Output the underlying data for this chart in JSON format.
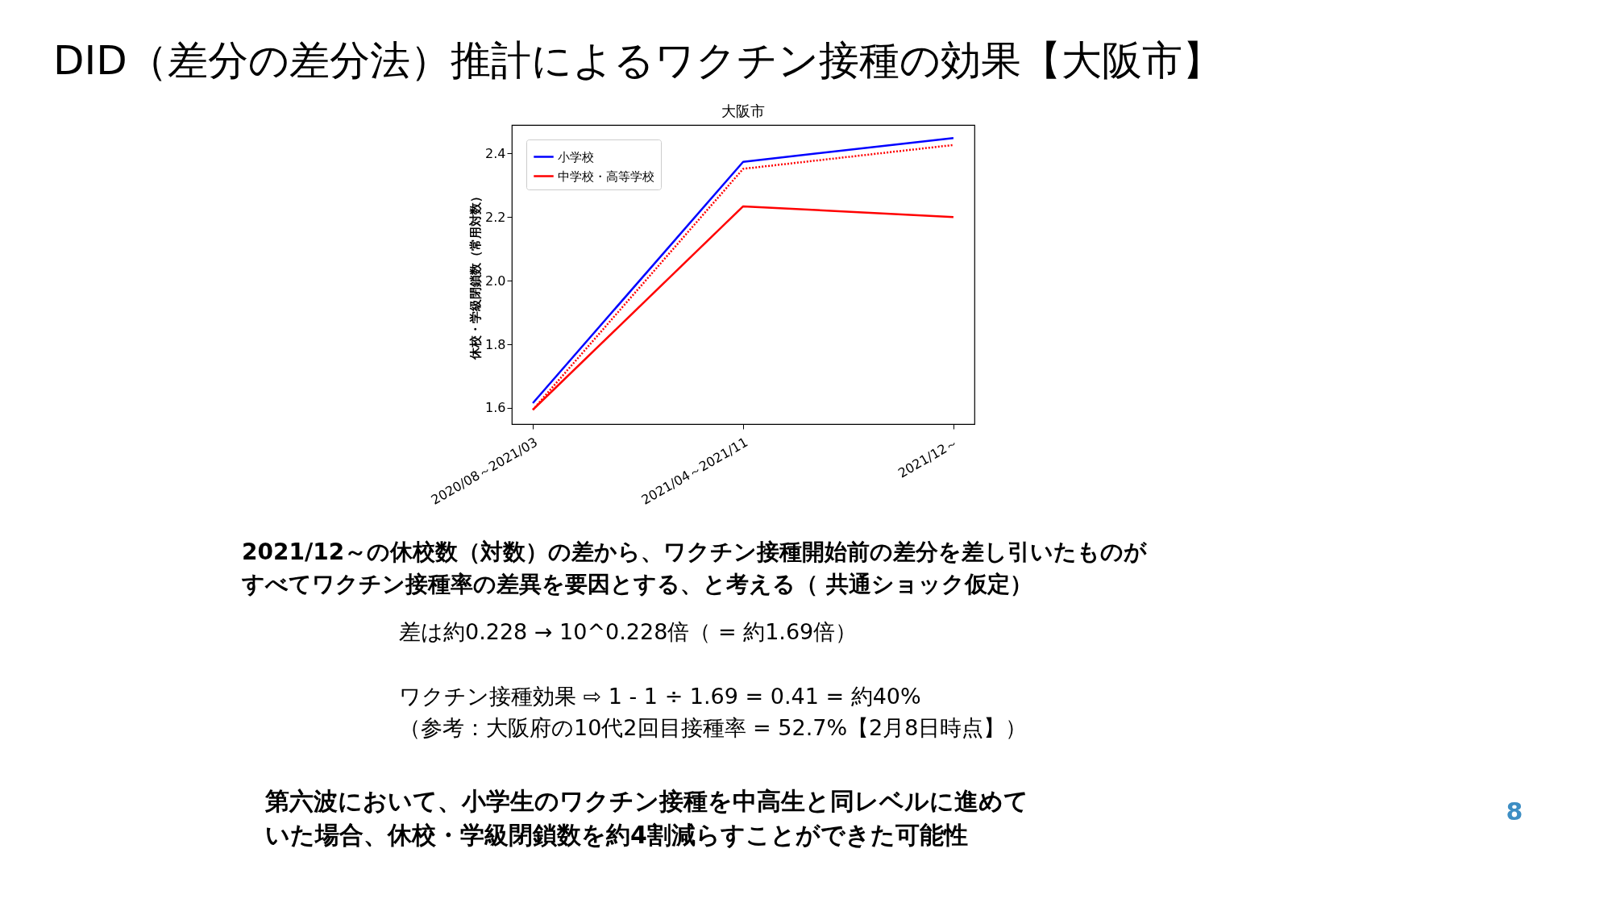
{
  "chart_data": {
    "type": "line",
    "title": "DID（差分の差分法）推計によるワクチン接種の効果【大阪市】",
    "subtitle": "大阪市",
    "ylabel": "休校・学級閉鎖数（常用対数）",
    "categories": [
      "2020/08～2021/03",
      "2021/04～2021/11",
      "2021/12～"
    ],
    "series": [
      {
        "name": "小学校",
        "color": "#0000ff",
        "values": [
          1.615,
          2.374,
          2.449
        ]
      },
      {
        "name": "中学校・高等学校",
        "color": "#ff0000",
        "values": [
          1.594,
          2.234,
          2.2
        ]
      },
      {
        "color": "#ff0000",
        "values": [
          1.594,
          2.352,
          2.427
        ],
        "line_style": "dotted"
      }
    ],
    "ylim": [
      1.549,
      2.49
    ],
    "yticks": [
      1.6,
      1.8,
      {
        "value": 2,
        "label": "2.0"
      },
      2.2,
      2.4
    ],
    "grid": false,
    "legend": "top left",
    "line_style": "solid",
    "marker": "none",
    "annotations": [
      "2021/12～の休校数（対数）の差から、ワクチン接種開始前の差分を差し引いたものが",
      "すべてワクチン接種率の差異を要因とする、と考える（ 共通ショック仮定）",
      "差は約0.228 → 10^0.228倍（ = 約1.69倍）",
      "ワクチン接種効果 ⇨ 1 - 1 ÷ 1.69 =  0.41 = 約40%",
      "（参考：大阪府の10代2回目接種率 = 52.7%【2月8日時点】）",
      "第六波において、小学生のワクチン接種を中高生と同レベルに進めて",
      "いた場合、休校・学級閉鎖数を約4割減らすことができた可能性",
      "8"
    ]
  }
}
